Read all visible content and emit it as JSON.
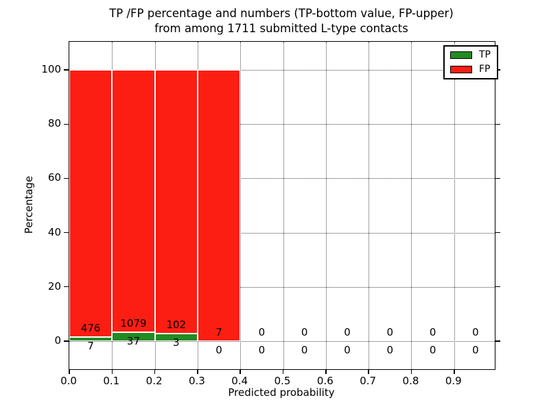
{
  "chart_data": {
    "type": "bar",
    "stacked": true,
    "title_line1": "TP /FP percentage and numbers (TP-bottom value, FP-upper)",
    "title_line2": "from among 1711 submitted L-type contacts",
    "total_contacts": 1711,
    "xlabel": "Predicted probability",
    "ylabel": "Percentage",
    "bin_edges": [
      0.0,
      0.1,
      0.2,
      0.3,
      0.4,
      0.5,
      0.6,
      0.7,
      0.8,
      0.9,
      1.0
    ],
    "x_ticks": [
      0.0,
      0.1,
      0.2,
      0.3,
      0.4,
      0.5,
      0.6,
      0.7,
      0.8,
      0.9
    ],
    "x_tick_labels": [
      "0.0",
      "0.1",
      "0.2",
      "0.3",
      "0.4",
      "0.5",
      "0.6",
      "0.7",
      "0.8",
      "0.9"
    ],
    "x_gridlines": [
      0.1,
      0.2,
      0.3,
      0.4,
      0.5,
      0.6,
      0.7,
      0.8,
      0.9
    ],
    "y_ticks": [
      0,
      20,
      40,
      60,
      80,
      100
    ],
    "xlim": [
      0,
      0.995
    ],
    "ylim": [
      -10.4,
      110.4
    ],
    "grid_style": "dotted",
    "bar_edge_color": "#ffffff",
    "legend_position": "upper right",
    "series": [
      {
        "name": "TP",
        "color": "#228b22",
        "counts": [
          7,
          37,
          3,
          0,
          0,
          0,
          0,
          0,
          0,
          0
        ],
        "percentages": [
          1.449,
          3.315,
          2.857,
          0,
          0,
          0,
          0,
          0,
          0,
          0
        ]
      },
      {
        "name": "FP",
        "color": "#fc1d13",
        "counts": [
          476,
          1079,
          102,
          7,
          0,
          0,
          0,
          0,
          0,
          0
        ],
        "percentages": [
          98.551,
          96.685,
          97.143,
          100,
          0,
          0,
          0,
          0,
          0,
          0
        ]
      }
    ]
  }
}
